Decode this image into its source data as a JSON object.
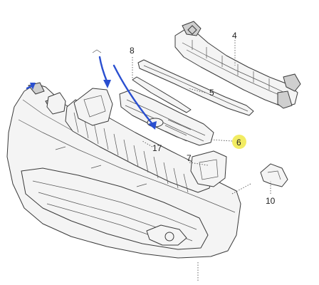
{
  "callouts": [
    {
      "id": "4",
      "highlighted": false
    },
    {
      "id": "5",
      "highlighted": false
    },
    {
      "id": "6",
      "highlighted": true
    },
    {
      "id": "7",
      "highlighted": false
    },
    {
      "id": "8",
      "highlighted": false
    },
    {
      "id": "10",
      "highlighted": false
    },
    {
      "id": "17",
      "highlighted": false
    }
  ],
  "colors": {
    "highlight": "#f2ec63",
    "arrow": "#2a4fd0",
    "line": "#3a3a3a"
  }
}
